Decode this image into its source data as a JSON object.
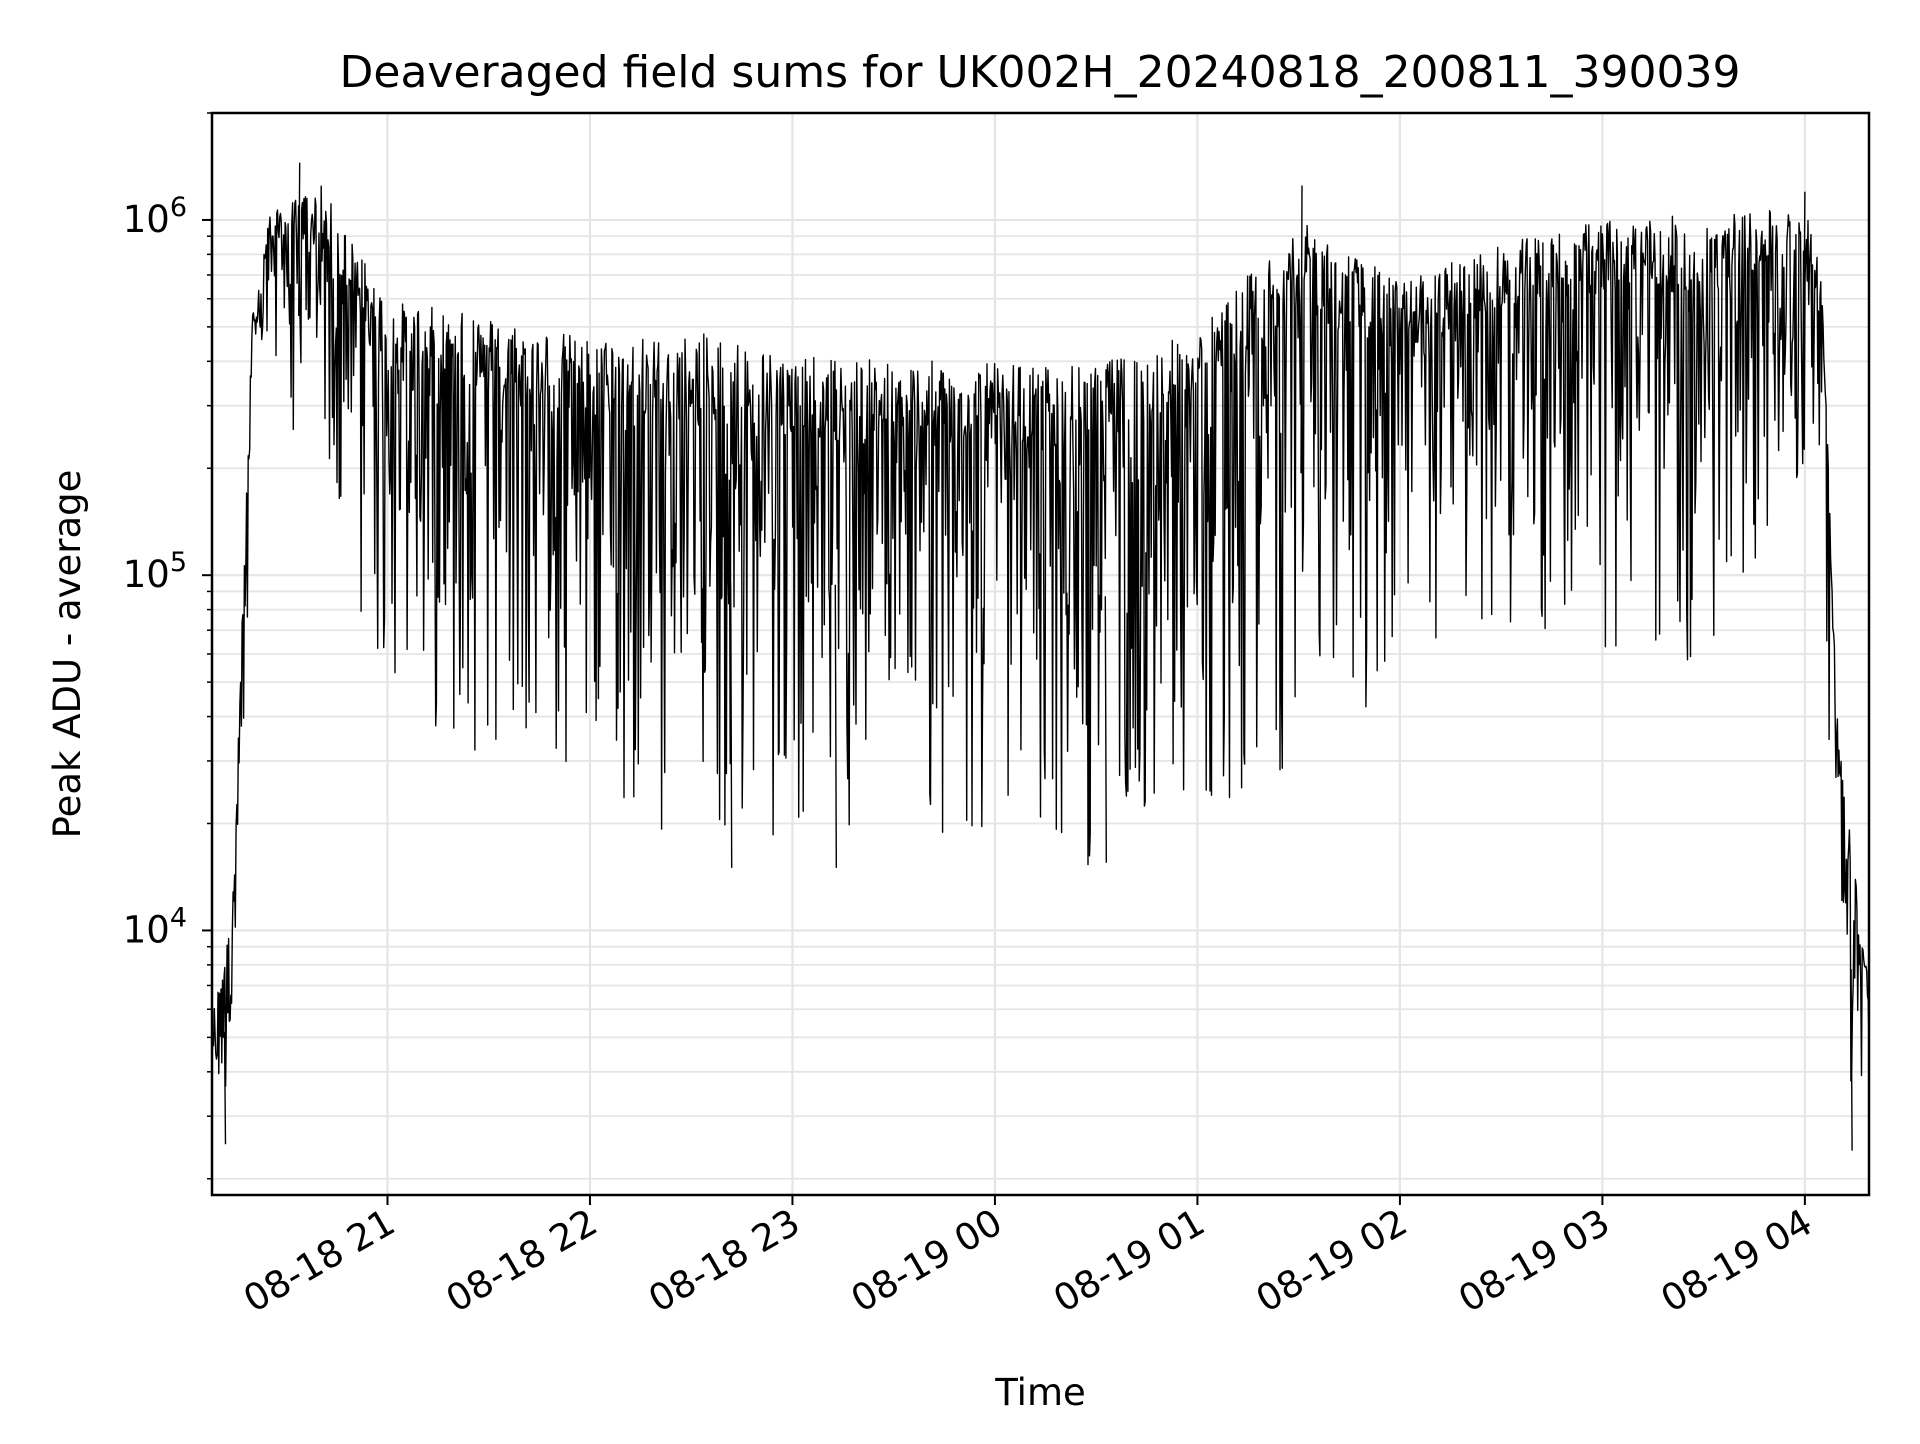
{
  "chart_data": {
    "type": "line",
    "title": "Deaveraged field sums for UK002H_20240818_200811_390039",
    "xlabel": "Time",
    "ylabel": "Peak ADU - average",
    "x_axis": {
      "kind": "datetime",
      "range": [
        "2024-08-18 20:08",
        "2024-08-19 04:19"
      ],
      "ticks": [
        {
          "value": "2024-08-18 21:00",
          "label": "08-18 21"
        },
        {
          "value": "2024-08-18 22:00",
          "label": "08-18 22"
        },
        {
          "value": "2024-08-18 23:00",
          "label": "08-18 23"
        },
        {
          "value": "2024-08-19 00:00",
          "label": "08-19 00"
        },
        {
          "value": "2024-08-19 01:00",
          "label": "08-19 01"
        },
        {
          "value": "2024-08-19 02:00",
          "label": "08-19 02"
        },
        {
          "value": "2024-08-19 03:00",
          "label": "08-19 03"
        },
        {
          "value": "2024-08-19 04:00",
          "label": "08-19 04"
        }
      ],
      "tick_label_rotation_deg": 30
    },
    "y_axis": {
      "scale": "log",
      "range": [
        1800,
        2000000
      ],
      "ticks": [
        {
          "value": 10000,
          "base": "10",
          "exp": "4"
        },
        {
          "value": 100000,
          "base": "10",
          "exp": "5"
        },
        {
          "value": 1000000,
          "base": "10",
          "exp": "6"
        }
      ]
    },
    "grid": true,
    "line_color": "#000000",
    "grid_color": "#e5e5e5",
    "series": [
      {
        "envelope": [
          {
            "time": "2024-08-18 20:08",
            "low": 2500,
            "high": 6000
          },
          {
            "time": "2024-08-18 20:14",
            "low": 3000,
            "high": 12000
          },
          {
            "time": "2024-08-18 20:20",
            "low": 150000,
            "high": 600000
          },
          {
            "time": "2024-08-18 20:25",
            "low": 400000,
            "high": 1100000
          },
          {
            "time": "2024-08-18 20:40",
            "low": 150000,
            "high": 1450000
          },
          {
            "time": "2024-08-18 21:00",
            "low": 45000,
            "high": 700000
          },
          {
            "time": "2024-08-18 21:30",
            "low": 30000,
            "high": 650000
          },
          {
            "time": "2024-08-18 22:00",
            "low": 25000,
            "high": 560000
          },
          {
            "time": "2024-08-18 22:40",
            "low": 15000,
            "high": 600000
          },
          {
            "time": "2024-08-18 23:00",
            "low": 20000,
            "high": 500000
          },
          {
            "time": "2024-08-18 23:30",
            "low": 15000,
            "high": 500000
          },
          {
            "time": "2024-08-19 00:00",
            "low": 18000,
            "high": 480000
          },
          {
            "time": "2024-08-19 00:30",
            "low": 15000,
            "high": 480000
          },
          {
            "time": "2024-08-19 01:00",
            "low": 21000,
            "high": 600000
          },
          {
            "time": "2024-08-19 01:30",
            "low": 30000,
            "high": 1250000
          },
          {
            "time": "2024-08-19 02:00",
            "low": 45000,
            "high": 800000
          },
          {
            "time": "2024-08-19 02:30",
            "low": 70000,
            "high": 1000000
          },
          {
            "time": "2024-08-19 03:00",
            "low": 60000,
            "high": 1200000
          },
          {
            "time": "2024-08-19 03:30",
            "low": 55000,
            "high": 1250000
          },
          {
            "time": "2024-08-19 04:00",
            "low": 200000,
            "high": 1200000
          },
          {
            "time": "2024-08-19 04:05",
            "low": 150000,
            "high": 800000
          },
          {
            "time": "2024-08-19 04:10",
            "low": 4000,
            "high": 40000
          },
          {
            "time": "2024-08-19 04:19",
            "low": 2400,
            "high": 7500
          }
        ],
        "peaks": [
          {
            "time": "2024-08-18 20:34",
            "value": 1450000
          },
          {
            "time": "2024-08-19 01:31",
            "value": 1250000
          },
          {
            "time": "2024-08-19 04:00",
            "value": 1200000
          }
        ],
        "troughs": [
          {
            "time": "2024-08-18 20:12",
            "value": 2500
          },
          {
            "time": "2024-08-18 22:42",
            "value": 15000
          },
          {
            "time": "2024-08-18 23:13",
            "value": 15000
          },
          {
            "time": "2024-08-19 00:33",
            "value": 15500
          },
          {
            "time": "2024-08-19 04:14",
            "value": 2400
          }
        ]
      }
    ]
  }
}
